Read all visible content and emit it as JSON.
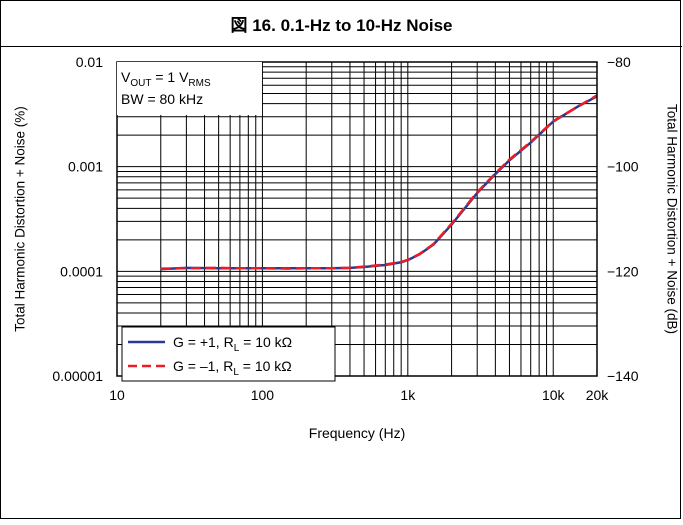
{
  "figure": {
    "title": "図 16. 0.1-Hz to 10-Hz Noise"
  },
  "chart_data": {
    "type": "line",
    "title": "図 16. 0.1-Hz to 10-Hz Noise",
    "xlabel": "Frequency (Hz)",
    "ylabel": "Total Harmonic Distortion + Noise (%)",
    "y2label": "Total Harmonic Distortion + Noise (dB)",
    "x_scale": "log",
    "y_scale": "log",
    "xlim": [
      10,
      20000
    ],
    "ylim": [
      1e-05,
      0.01
    ],
    "y2lim": [
      -140,
      -80
    ],
    "x_ticks": [
      10,
      100,
      1000,
      10000,
      20000
    ],
    "x_tick_labels": [
      "10",
      "100",
      "1k",
      "10k",
      "20k"
    ],
    "y_ticks": [
      0.01,
      0.001,
      0.0001,
      1e-05
    ],
    "y_tick_labels": [
      "0.01",
      "0.001",
      "0.0001",
      "0.00001"
    ],
    "y2_ticks": [
      -80,
      -100,
      -120,
      -140
    ],
    "y2_tick_labels": [
      "−80",
      "−100",
      "−120",
      "−140"
    ],
    "grid": true,
    "conditions": {
      "line1_main": "V",
      "line1_sub": "OUT",
      "line1_mid": " = 1 V",
      "line1_sub2": "RMS",
      "line2": "BW = 80 kHz"
    },
    "legend_position": "lower-left",
    "series": [
      {
        "name": "G = +1, R",
        "name_sub": "L",
        "name_suffix": " = 10 kΩ",
        "color": "#2b3990",
        "dash": "solid",
        "x": [
          20,
          30,
          50,
          70,
          100,
          150,
          200,
          300,
          400,
          500,
          700,
          900,
          1000,
          1200,
          1500,
          2000,
          3000,
          4000,
          5000,
          7000,
          10000,
          15000,
          20000
        ],
        "values": [
          0.000105,
          0.000108,
          0.000107,
          0.000107,
          0.000107,
          0.000107,
          0.000107,
          0.000107,
          0.000108,
          0.00011,
          0.000115,
          0.000122,
          0.000128,
          0.000145,
          0.00018,
          0.00028,
          0.00056,
          0.00085,
          0.00115,
          0.0017,
          0.0027,
          0.0038,
          0.0047
        ]
      },
      {
        "name": "G = –1, R",
        "name_sub": "L",
        "name_suffix": " = 10 kΩ",
        "color": "#ed1c24",
        "dash": "dashed",
        "x": [
          20,
          30,
          50,
          70,
          100,
          150,
          200,
          300,
          400,
          500,
          700,
          900,
          1000,
          1200,
          1500,
          2000,
          3000,
          4000,
          5000,
          7000,
          10000,
          15000,
          20000
        ],
        "values": [
          0.000106,
          0.000107,
          0.000108,
          0.000107,
          0.000107,
          0.000106,
          0.000107,
          0.000107,
          0.000108,
          0.000111,
          0.000116,
          0.000123,
          0.000129,
          0.000146,
          0.000182,
          0.000285,
          0.00057,
          0.00086,
          0.00117,
          0.00172,
          0.00272,
          0.0038,
          0.0048
        ]
      }
    ]
  }
}
